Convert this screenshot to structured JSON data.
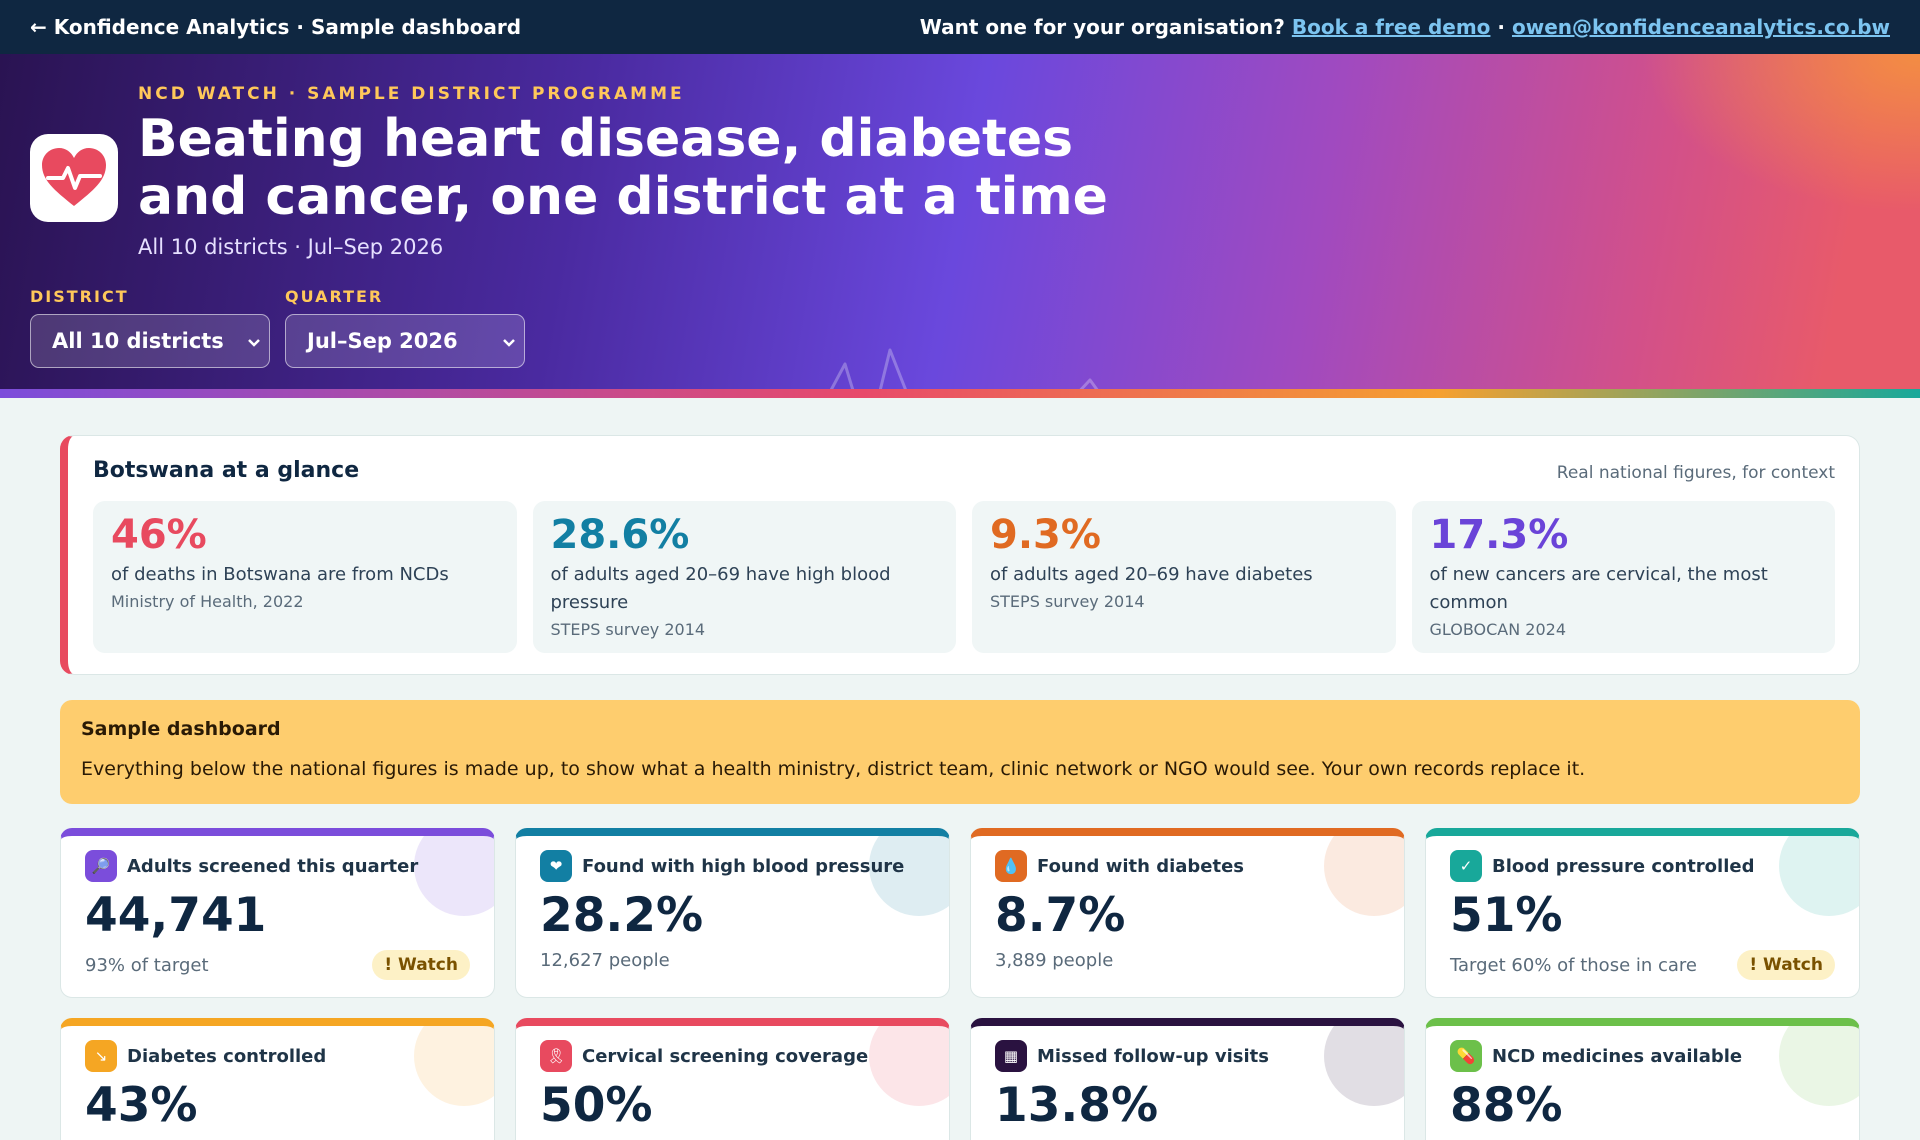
{
  "topbar": {
    "back_link": "← Konfidence Analytics · Sample dashboard",
    "cta_text": "Want one for your organisation?",
    "demo_link": "Book a free demo",
    "separator": "·",
    "email_link": "owen@konfidenceanalytics.co.bw"
  },
  "hero": {
    "eyebrow": "NCD WATCH · SAMPLE DISTRICT PROGRAMME",
    "title_line1": "Beating heart disease, diabetes",
    "title_line2": "and cancer, one district at a time",
    "subtitle": "All 10 districts · Jul–Sep 2026",
    "icon": "heart-pulse-icon"
  },
  "filters": {
    "district": {
      "label": "DISTRICT",
      "value": "All 10 districts"
    },
    "quarter": {
      "label": "QUARTER",
      "value": "Jul–Sep 2026"
    }
  },
  "glance": {
    "title": "Botswana at a glance",
    "context": "Real national figures, for context",
    "stats": [
      {
        "value": "46%",
        "desc": "of deaths in Botswana are from NCDs",
        "source": "Ministry of Health, 2022",
        "color": "#e84a5f"
      },
      {
        "value": "28.6%",
        "desc": "of adults aged 20–69 have high blood pressure",
        "source": "STEPS survey 2014",
        "color": "#127fa3"
      },
      {
        "value": "9.3%",
        "desc": "of adults aged 20–69 have diabetes",
        "source": "STEPS survey 2014",
        "color": "#e06a22"
      },
      {
        "value": "17.3%",
        "desc": "of new cancers are cervical, the most common",
        "source": "GLOBOCAN 2024",
        "color": "#6a44d8"
      }
    ]
  },
  "notice": {
    "title": "Sample dashboard",
    "body": "Everything below the national figures is made up, to show what a health ministry, district team, clinic network or NGO would see. Your own records replace it."
  },
  "kpis": [
    {
      "label": "Adults screened this quarter",
      "value": "44,741",
      "sub": "93% of target",
      "badge": "! Watch",
      "color": "#7b4ddb",
      "icon": "magnifier-icon",
      "glyph": "🔎"
    },
    {
      "label": "Found with high blood pressure",
      "value": "28.2%",
      "sub": "12,627 people",
      "badge": "",
      "color": "#127fa3",
      "icon": "heart-icon",
      "glyph": "❤"
    },
    {
      "label": "Found with diabetes",
      "value": "8.7%",
      "sub": "3,889 people",
      "badge": "",
      "color": "#e06a22",
      "icon": "blood-drop-icon",
      "glyph": "💧"
    },
    {
      "label": "Blood pressure controlled",
      "value": "51%",
      "sub": "Target 60% of those in care",
      "badge": "! Watch",
      "color": "#18a89a",
      "icon": "check-icon",
      "glyph": "✓"
    },
    {
      "label": "Diabetes controlled",
      "value": "43%",
      "sub": "",
      "badge": "",
      "color": "#f5a623",
      "icon": "chart-down-icon",
      "glyph": "↘"
    },
    {
      "label": "Cervical screening coverage",
      "value": "50%",
      "sub": "",
      "badge": "",
      "color": "#e84a5f",
      "icon": "ribbon-icon",
      "glyph": "🎗"
    },
    {
      "label": "Missed follow-up visits",
      "value": "13.8%",
      "sub": "",
      "badge": "",
      "color": "#2a1240",
      "icon": "calendar-icon",
      "glyph": "▦"
    },
    {
      "label": "NCD medicines available",
      "value": "88%",
      "sub": "",
      "badge": "",
      "color": "#6cc04a",
      "icon": "pill-icon",
      "glyph": "💊"
    }
  ]
}
